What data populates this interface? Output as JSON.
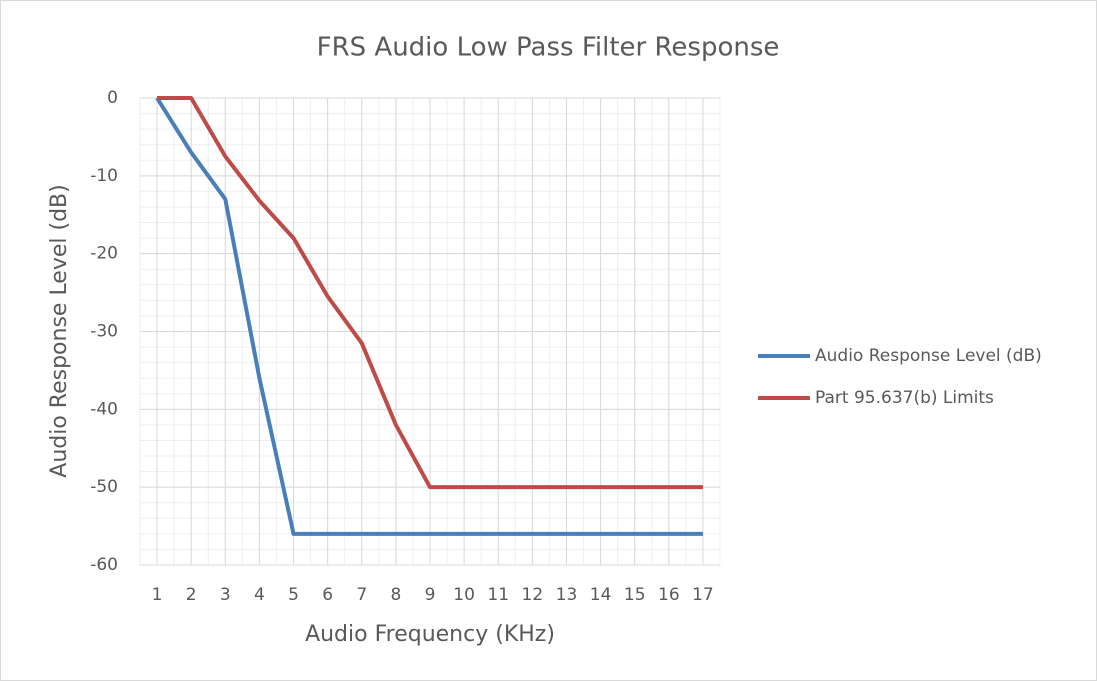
{
  "chart_data": {
    "type": "line",
    "title": "FRS Audio Low Pass Filter Response",
    "x_label": "Audio Frequency (KHz)",
    "y_label": "Audio Response Level (dB)",
    "categories": [
      "1",
      "2",
      "3",
      "4",
      "5",
      "6",
      "7",
      "8",
      "9",
      "10",
      "11",
      "12",
      "13",
      "14",
      "15",
      "16",
      "17"
    ],
    "series": [
      {
        "name": "Audio Response Level (dB)",
        "color": "#4a7ebb",
        "values": [
          0,
          -7,
          -13,
          -36,
          -56,
          -56,
          -56,
          -56,
          -56,
          -56,
          -56,
          -56,
          -56,
          -56,
          -56,
          -56,
          -56
        ]
      },
      {
        "name": "Part 95.637(b) Limits",
        "color": "#be4b48",
        "values": [
          0,
          0,
          -7.5,
          -13.2,
          -18,
          -25.5,
          -31.5,
          -42,
          -50,
          -50,
          -50,
          -50,
          -50,
          -50,
          -50,
          -50,
          -50
        ]
      }
    ],
    "ylim": [
      -60,
      0
    ],
    "yticks": [
      0,
      -10,
      -20,
      -30,
      -40,
      -50,
      -60
    ],
    "grid": true,
    "legend": "right"
  }
}
